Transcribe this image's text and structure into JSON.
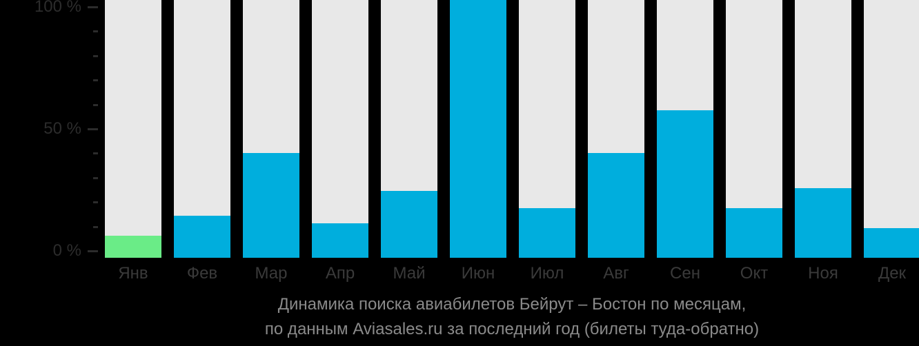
{
  "background": "#000000",
  "colors": {
    "bar": "#00aedd",
    "bar_highlight": "#6aec87",
    "column_bg": "#e8e8e8",
    "axis_label": "#2c2c2c",
    "tick": "#2c2c2c",
    "month_label": "#3a3a3a",
    "caption": "#8a8a8a"
  },
  "chart_data": {
    "type": "bar",
    "title": "Динамика поиска авиабилетов Бейрут – Бостон по месяцам, по данным Aviasales.ru за последний год (билеты туда-обратно)",
    "caption_line1": "Динамика поиска авиабилетов Бейрут – Бостон по месяцам,",
    "caption_line2": "по данным Aviasales.ru за последний год (билеты туда-обратно)",
    "categories": [
      "Янв",
      "Фев",
      "Мар",
      "Апр",
      "Май",
      "Июн",
      "Июл",
      "Авг",
      "Сен",
      "Окт",
      "Ноя",
      "Дек"
    ],
    "values": [
      6,
      14,
      39,
      11,
      24,
      100,
      17,
      39,
      56,
      17,
      25,
      9
    ],
    "unit": "%",
    "highlighted_category": "Янв",
    "xlabel": "",
    "ylabel": "",
    "ylim": [
      0,
      100
    ],
    "yticks": [
      0,
      50,
      100
    ],
    "ytick_labels": [
      "0 %",
      "50 %",
      "100 %"
    ],
    "minor_tick_step": 10,
    "grid": false,
    "legend": "none"
  }
}
